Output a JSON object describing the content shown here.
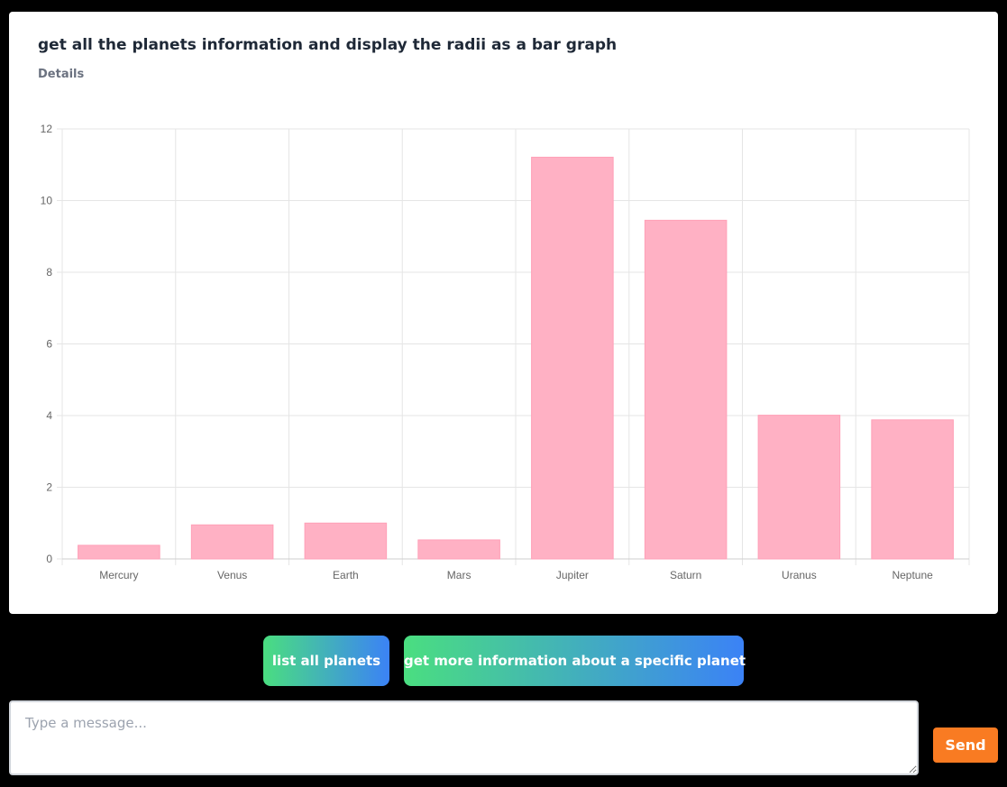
{
  "card": {
    "title": "get all the planets information and display the radii as a bar graph",
    "details_label": "Details"
  },
  "chart_data": {
    "type": "bar",
    "categories": [
      "Mercury",
      "Venus",
      "Earth",
      "Mars",
      "Jupiter",
      "Saturn",
      "Uranus",
      "Neptune"
    ],
    "values": [
      0.38,
      0.95,
      1.0,
      0.53,
      11.21,
      9.45,
      4.01,
      3.88
    ],
    "y_ticks": [
      "0",
      "2",
      "4",
      "6",
      "8",
      "10",
      "12"
    ],
    "ylim": [
      0,
      12
    ],
    "title": "",
    "xlabel": "",
    "ylabel": "",
    "grid": true,
    "legend": "none",
    "bar_color": "#ffb1c4",
    "bar_border_color": "#ff9fb7",
    "grid_color": "#e5e5e5",
    "tick_color": "#666666"
  },
  "suggestions": [
    {
      "label": "list all planets"
    },
    {
      "label": "get more information about a specific planet"
    }
  ],
  "composer": {
    "placeholder": "Type a message...",
    "value": "",
    "send_label": "Send"
  }
}
